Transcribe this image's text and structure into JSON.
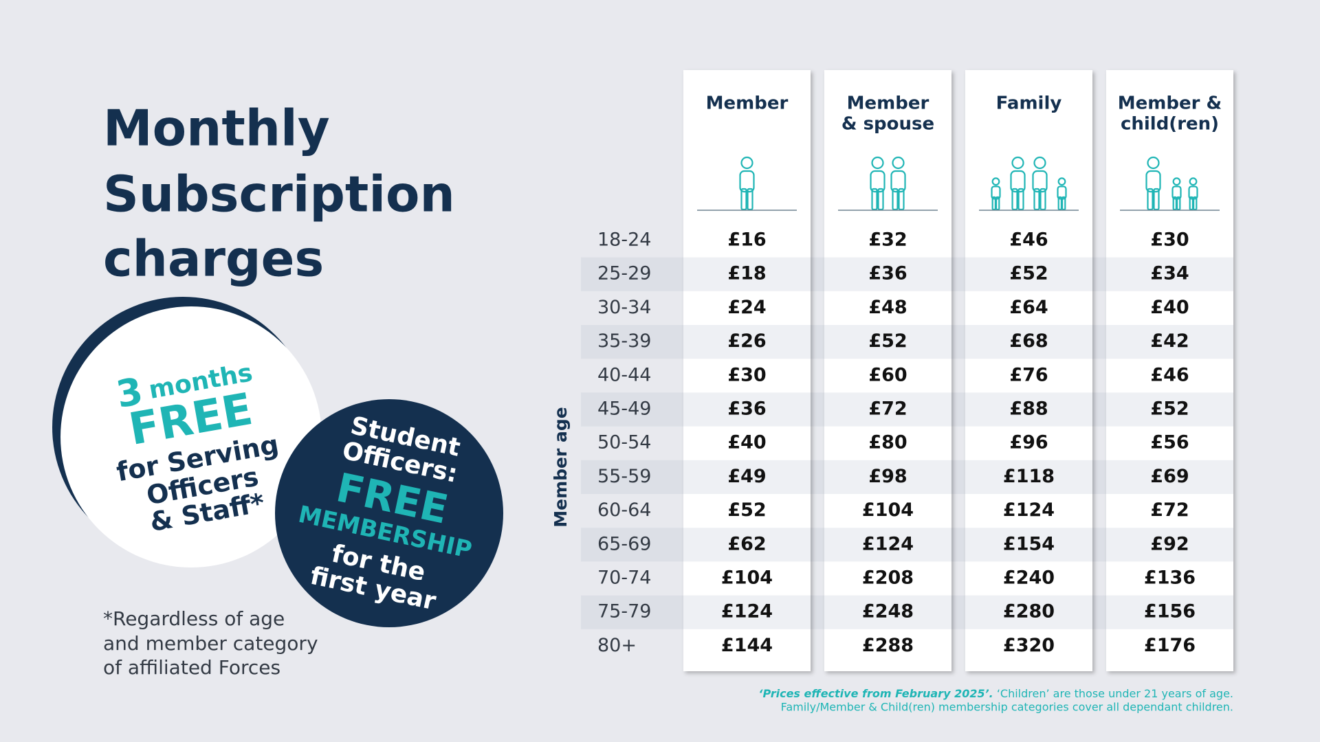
{
  "title": [
    "Monthly",
    "Subscription",
    "charges"
  ],
  "offer_serving": [
    "3",
    "months",
    "FREE",
    "for Serving",
    "Officers",
    "& Staff*"
  ],
  "offer_students": [
    "Student",
    "Officers:",
    "FREE",
    "MEMBERSHIP",
    "for the",
    "first year"
  ],
  "footnote": [
    "*Regardless of age",
    "and member category",
    "of affiliated Forces"
  ],
  "table": {
    "row_label": "Member age",
    "columns": [
      [
        "Member"
      ],
      [
        "Member",
        "& spouse"
      ],
      [
        "Family"
      ],
      [
        "Member &",
        "child(ren)"
      ]
    ],
    "rows": [
      [
        "18-24",
        "£16",
        "£32",
        "£46",
        "£30"
      ],
      [
        "25-29",
        "£18",
        "£36",
        "£52",
        "£34"
      ],
      [
        "30-34",
        "£24",
        "£48",
        "£64",
        "£40"
      ],
      [
        "35-39",
        "£26",
        "£52",
        "£68",
        "£42"
      ],
      [
        "40-44",
        "£30",
        "£60",
        "£76",
        "£46"
      ],
      [
        "45-49",
        "£36",
        "£72",
        "£88",
        "£52"
      ],
      [
        "50-54",
        "£40",
        "£80",
        "£96",
        "£56"
      ],
      [
        "55-59",
        "£49",
        "£98",
        "£118",
        "£69"
      ],
      [
        "60-64",
        "£52",
        "£104",
        "£124",
        "£72"
      ],
      [
        "65-69",
        "£62",
        "£124",
        "£154",
        "£92"
      ],
      [
        "70-74",
        "£104",
        "£208",
        "£240",
        "£136"
      ],
      [
        "75-79",
        "£124",
        "£248",
        "£280",
        "£156"
      ],
      [
        "80+",
        "£144",
        "£288",
        "£320",
        "£176"
      ]
    ]
  },
  "notes": {
    "emphasis": "‘Prices effective from February 2025’.",
    "line1": " ‘Children’ are those under 21 years of age.",
    "line2": "Family/Member & Child(ren) membership categories cover all dependant children."
  }
}
